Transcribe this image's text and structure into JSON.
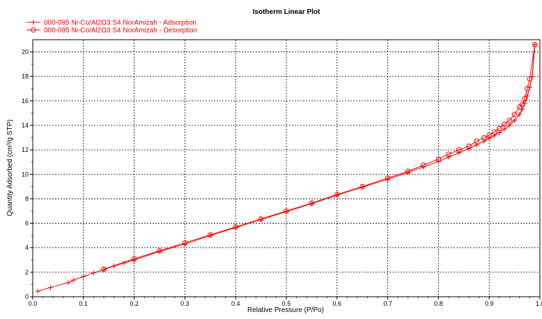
{
  "chart_data": {
    "type": "line",
    "title": "Isotherm Linear Plot",
    "xlabel": "Relative Pressure (P/Po)",
    "ylabel": "Quantity Adsorbed (cm³/g STP)",
    "xlim": [
      0.0,
      1.0
    ],
    "ylim": [
      0,
      21
    ],
    "xticks": [
      "0.0",
      "0.1",
      "0.2",
      "0.3",
      "0.4",
      "0.5",
      "0.6",
      "0.7",
      "0.8",
      "0.9",
      "1.0"
    ],
    "yticks": [
      "0",
      "2",
      "4",
      "6",
      "8",
      "10",
      "12",
      "14",
      "16",
      "18",
      "20"
    ],
    "grid": true,
    "legend_position": "top-left",
    "series": [
      {
        "name": "000-095 Ni-Co/Al2O3 S4 NorAmizah - Adsorption",
        "color": "#ff0000",
        "marker": "plus",
        "x": [
          0.01,
          0.035,
          0.07,
          0.08,
          0.1,
          0.12,
          0.14,
          0.16,
          0.18,
          0.2,
          0.25,
          0.3,
          0.35,
          0.4,
          0.45,
          0.5,
          0.55,
          0.6,
          0.65,
          0.7,
          0.74,
          0.77,
          0.8,
          0.82,
          0.84,
          0.86,
          0.875,
          0.89,
          0.9,
          0.91,
          0.92,
          0.93,
          0.94,
          0.95,
          0.96,
          0.965,
          0.97,
          0.975,
          0.98,
          0.985,
          0.99
        ],
        "y": [
          0.45,
          0.75,
          1.15,
          1.35,
          1.65,
          1.95,
          2.2,
          2.5,
          2.75,
          3.0,
          3.7,
          4.3,
          5.0,
          5.65,
          6.3,
          6.95,
          7.6,
          8.3,
          8.95,
          9.6,
          10.15,
          10.6,
          11.05,
          11.4,
          11.75,
          12.1,
          12.4,
          12.7,
          12.95,
          13.15,
          13.4,
          13.7,
          14.0,
          14.4,
          14.9,
          15.3,
          15.8,
          16.4,
          17.1,
          18.0,
          20.6
        ]
      },
      {
        "name": "000-095 Ni-Co/Al2O3 S4 NorAmizah - Desorption",
        "color": "#ff0000",
        "marker": "circle",
        "x": [
          0.99,
          0.98,
          0.975,
          0.97,
          0.965,
          0.96,
          0.95,
          0.94,
          0.93,
          0.92,
          0.91,
          0.9,
          0.89,
          0.875,
          0.86,
          0.84,
          0.82,
          0.8,
          0.77,
          0.74,
          0.7,
          0.65,
          0.6,
          0.55,
          0.5,
          0.45,
          0.4,
          0.35,
          0.3,
          0.25,
          0.2,
          0.14
        ],
        "y": [
          20.6,
          17.8,
          17.0,
          16.2,
          15.7,
          15.5,
          14.9,
          14.4,
          14.1,
          13.75,
          13.45,
          13.2,
          13.0,
          12.7,
          12.3,
          12.0,
          11.65,
          11.25,
          10.75,
          10.25,
          9.7,
          9.0,
          8.35,
          7.65,
          7.0,
          6.35,
          5.7,
          5.05,
          4.4,
          3.75,
          3.1,
          2.25
        ]
      }
    ]
  }
}
